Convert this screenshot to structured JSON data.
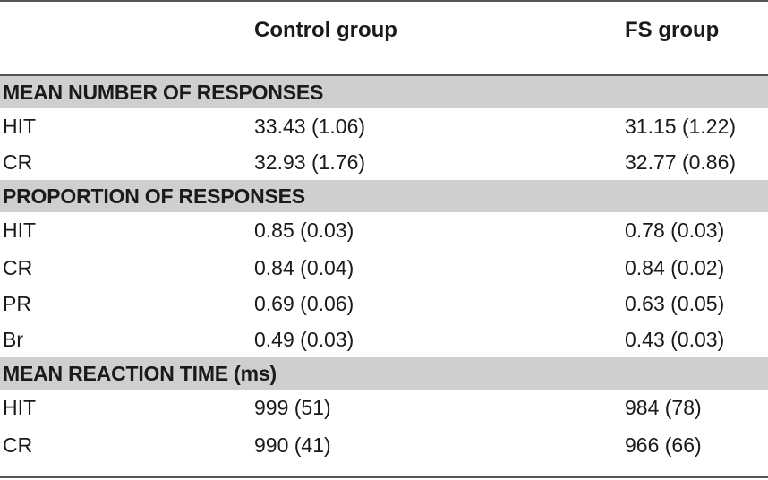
{
  "header": {
    "col1": "Control group",
    "col2": "FS group"
  },
  "sections": [
    {
      "title": "MEAN NUMBER OF RESPONSES",
      "rows": [
        {
          "label": "HIT",
          "control": "33.43 (1.06)",
          "fs": "31.15 (1.22)"
        },
        {
          "label": "CR",
          "control": "32.93 (1.76)",
          "fs": "32.77 (0.86)"
        }
      ]
    },
    {
      "title": "PROPORTION OF RESPONSES",
      "rows": [
        {
          "label": "HIT",
          "control": "0.85 (0.03)",
          "fs": "0.78 (0.03)"
        },
        {
          "label": "CR",
          "control": "0.84 (0.04)",
          "fs": "0.84 (0.02)"
        },
        {
          "label": "PR",
          "control": "0.69 (0.06)",
          "fs": "0.63 (0.05)"
        },
        {
          "label": "Br",
          "control": "0.49 (0.03)",
          "fs": "0.43 (0.03)"
        }
      ]
    },
    {
      "title": "MEAN REACTION TIME (ms)",
      "rows": [
        {
          "label": "HIT",
          "control": "999 (51)",
          "fs": "984 (78)"
        },
        {
          "label": "CR",
          "control": "990 (41)",
          "fs": "966 (66)"
        }
      ]
    }
  ]
}
